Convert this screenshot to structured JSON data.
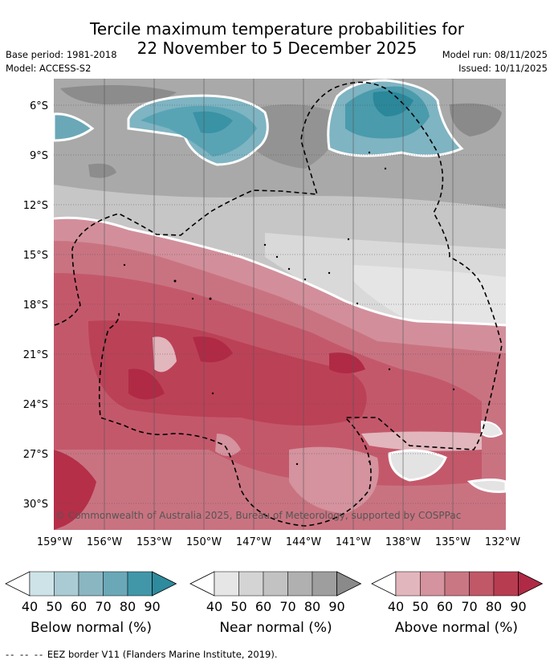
{
  "title": {
    "line1": "Tercile maximum temperature probabilities for",
    "line2": "22 November to 5 December 2025"
  },
  "meta": {
    "base_period": "Base period: 1981-2018",
    "model": "Model: ACCESS-S2",
    "model_run": "Model run: 08/11/2025",
    "issued": "Issued: 10/11/2025"
  },
  "map": {
    "lat_labels": [
      "6°S",
      "9°S",
      "12°S",
      "15°S",
      "18°S",
      "21°S",
      "24°S",
      "27°S",
      "30°S"
    ],
    "lon_labels": [
      "159°W",
      "156°W",
      "153°W",
      "150°W",
      "147°W",
      "144°W",
      "141°W",
      "138°W",
      "135°W",
      "132°W"
    ],
    "copyright": "© Commonwealth of Australia 2025, Bureau of Meteorology, supported by COSPPac"
  },
  "colorbars": [
    {
      "name": "below",
      "title": "Below normal (%)",
      "ticks": [
        "40",
        "50",
        "60",
        "70",
        "80",
        "90"
      ],
      "colors": [
        "#ffffff",
        "#cde3e8",
        "#aacbd3",
        "#8ab6c2",
        "#6aa8b8",
        "#4197a8",
        "#2e8a9d"
      ]
    },
    {
      "name": "near",
      "title": "Near normal (%)",
      "ticks": [
        "40",
        "50",
        "60",
        "70",
        "80",
        "90"
      ],
      "colors": [
        "#ffffff",
        "#e6e6e6",
        "#d4d4d4",
        "#c2c2c2",
        "#b0b0b0",
        "#9e9e9e",
        "#8a8a8a"
      ]
    },
    {
      "name": "above",
      "title": "Above normal (%)",
      "ticks": [
        "40",
        "50",
        "60",
        "70",
        "80",
        "90"
      ],
      "colors": [
        "#ffffff",
        "#e2b6bd",
        "#d4939e",
        "#c97783",
        "#c05868",
        "#b83c50",
        "#b02a45"
      ]
    }
  ],
  "footnote": {
    "dash": "-- -- --",
    "text": "EEZ border V11 (Flanders Marine Institute, 2019)."
  }
}
